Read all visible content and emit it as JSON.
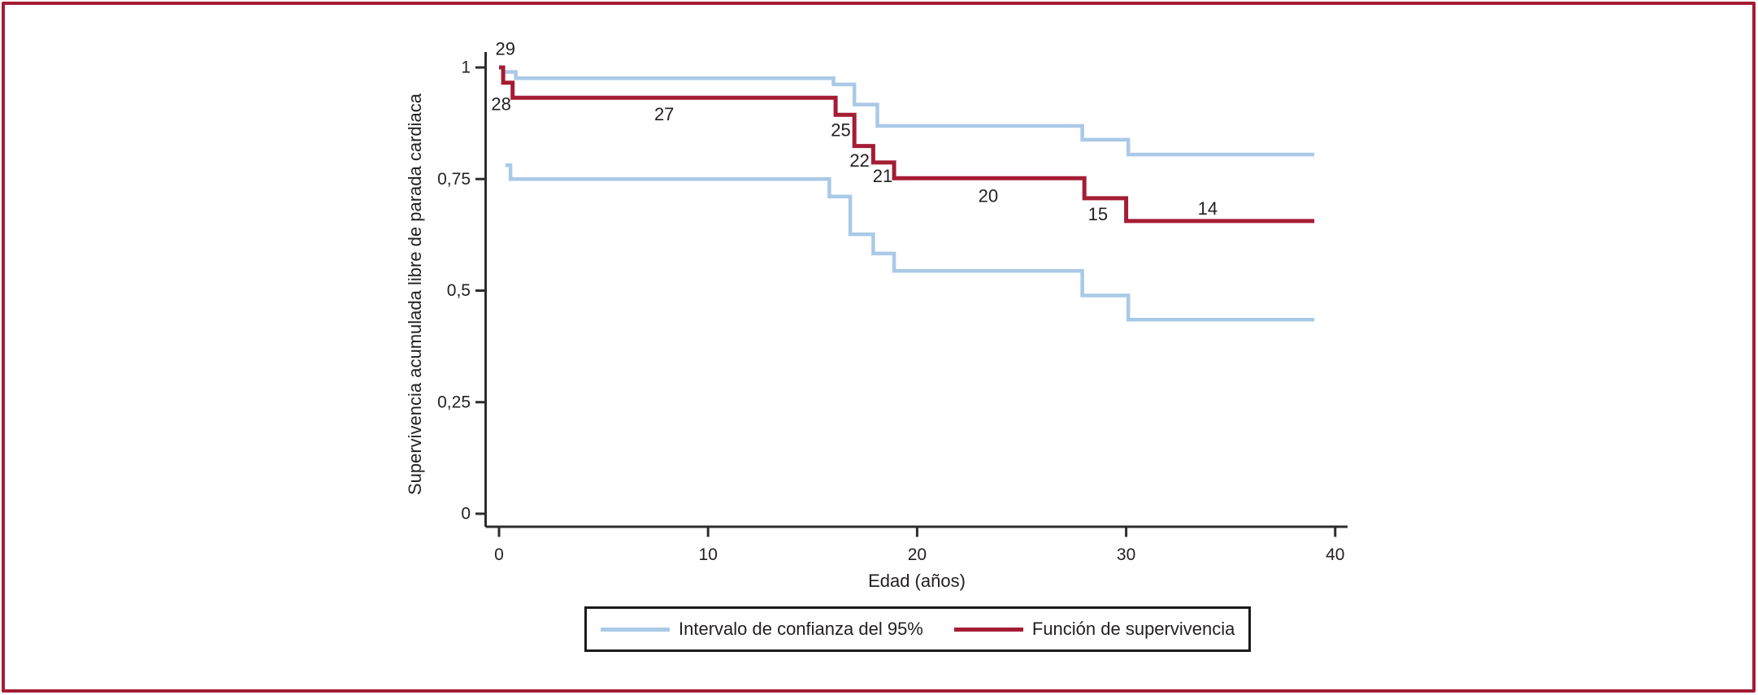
{
  "figure": {
    "border_color": "#a51c35",
    "background_color": "#ffffff"
  },
  "chart_data": {
    "type": "line",
    "subtype": "kaplan-meier-step",
    "title": "",
    "xlabel": "Edad (años)",
    "ylabel": "Supervivencia acumulada libre de parada cardiaca",
    "xlim": [
      0,
      40
    ],
    "ylim": [
      0,
      1
    ],
    "grid": false,
    "legend_position": "bottom",
    "x_ticks": [
      {
        "value": 0,
        "label": "0"
      },
      {
        "value": 10,
        "label": "10"
      },
      {
        "value": 20,
        "label": "20"
      },
      {
        "value": 30,
        "label": "30"
      },
      {
        "value": 40,
        "label": "40"
      }
    ],
    "y_ticks": [
      {
        "value": 0,
        "label": "0"
      },
      {
        "value": 0.25,
        "label": "0,25"
      },
      {
        "value": 0.5,
        "label": "0,5"
      },
      {
        "value": 0.75,
        "label": "0,75"
      },
      {
        "value": 1,
        "label": "1"
      }
    ],
    "series": [
      {
        "name": "Intervalo de confianza del 95% (límite superior)",
        "color": "#aac9e7",
        "width": 4.5,
        "points": [
          [
            0.25,
            0.99
          ],
          [
            0.8,
            0.99
          ],
          [
            0.8,
            0.976
          ],
          [
            16,
            0.976
          ],
          [
            16,
            0.962
          ],
          [
            17,
            0.962
          ],
          [
            17,
            0.917
          ],
          [
            18.1,
            0.917
          ],
          [
            18.1,
            0.869
          ],
          [
            27.9,
            0.869
          ],
          [
            27.9,
            0.838
          ],
          [
            30.1,
            0.838
          ],
          [
            30.1,
            0.805
          ],
          [
            39,
            0.805
          ]
        ]
      },
      {
        "name": "Intervalo de confianza del 95% (límite inferior)",
        "color": "#aac9e7",
        "width": 4.5,
        "points": [
          [
            0.3,
            0.781
          ],
          [
            0.55,
            0.781
          ],
          [
            0.55,
            0.75
          ],
          [
            15.8,
            0.75
          ],
          [
            15.8,
            0.711
          ],
          [
            16.8,
            0.711
          ],
          [
            16.8,
            0.626
          ],
          [
            17.9,
            0.626
          ],
          [
            17.9,
            0.583
          ],
          [
            18.9,
            0.583
          ],
          [
            18.9,
            0.544
          ],
          [
            27.9,
            0.544
          ],
          [
            27.9,
            0.489
          ],
          [
            30.1,
            0.489
          ],
          [
            30.1,
            0.435
          ],
          [
            39,
            0.435
          ]
        ]
      },
      {
        "name": "Función de supervivencia",
        "color": "#a51c35",
        "width": 5,
        "points": [
          [
            0,
            1.0
          ],
          [
            0.2,
            1.0
          ],
          [
            0.2,
            0.966
          ],
          [
            0.65,
            0.966
          ],
          [
            0.65,
            0.932
          ],
          [
            16.1,
            0.932
          ],
          [
            16.1,
            0.894
          ],
          [
            17,
            0.894
          ],
          [
            17,
            0.824
          ],
          [
            17.9,
            0.824
          ],
          [
            17.9,
            0.787
          ],
          [
            18.9,
            0.787
          ],
          [
            18.9,
            0.752
          ],
          [
            28,
            0.752
          ],
          [
            28,
            0.707
          ],
          [
            30,
            0.707
          ],
          [
            30,
            0.656
          ],
          [
            39,
            0.656
          ]
        ]
      }
    ],
    "annotations": [
      {
        "text": "29",
        "x": 0.3,
        "y": 1.042
      },
      {
        "text": "28",
        "x": 0.1,
        "y": 0.918
      },
      {
        "text": "27",
        "x": 7.9,
        "y": 0.895
      },
      {
        "text": "25",
        "x": 16.35,
        "y": 0.86
      },
      {
        "text": "22",
        "x": 17.25,
        "y": 0.791
      },
      {
        "text": "21",
        "x": 18.35,
        "y": 0.757
      },
      {
        "text": "20",
        "x": 23.4,
        "y": 0.712
      },
      {
        "text": "15",
        "x": 28.65,
        "y": 0.671
      },
      {
        "text": "14",
        "x": 33.9,
        "y": 0.684
      }
    ]
  },
  "legend": {
    "items": [
      {
        "label": "Intervalo de confianza del 95%",
        "color": "#aac9e7"
      },
      {
        "label": "Función de supervivencia",
        "color": "#a51c35"
      }
    ]
  }
}
